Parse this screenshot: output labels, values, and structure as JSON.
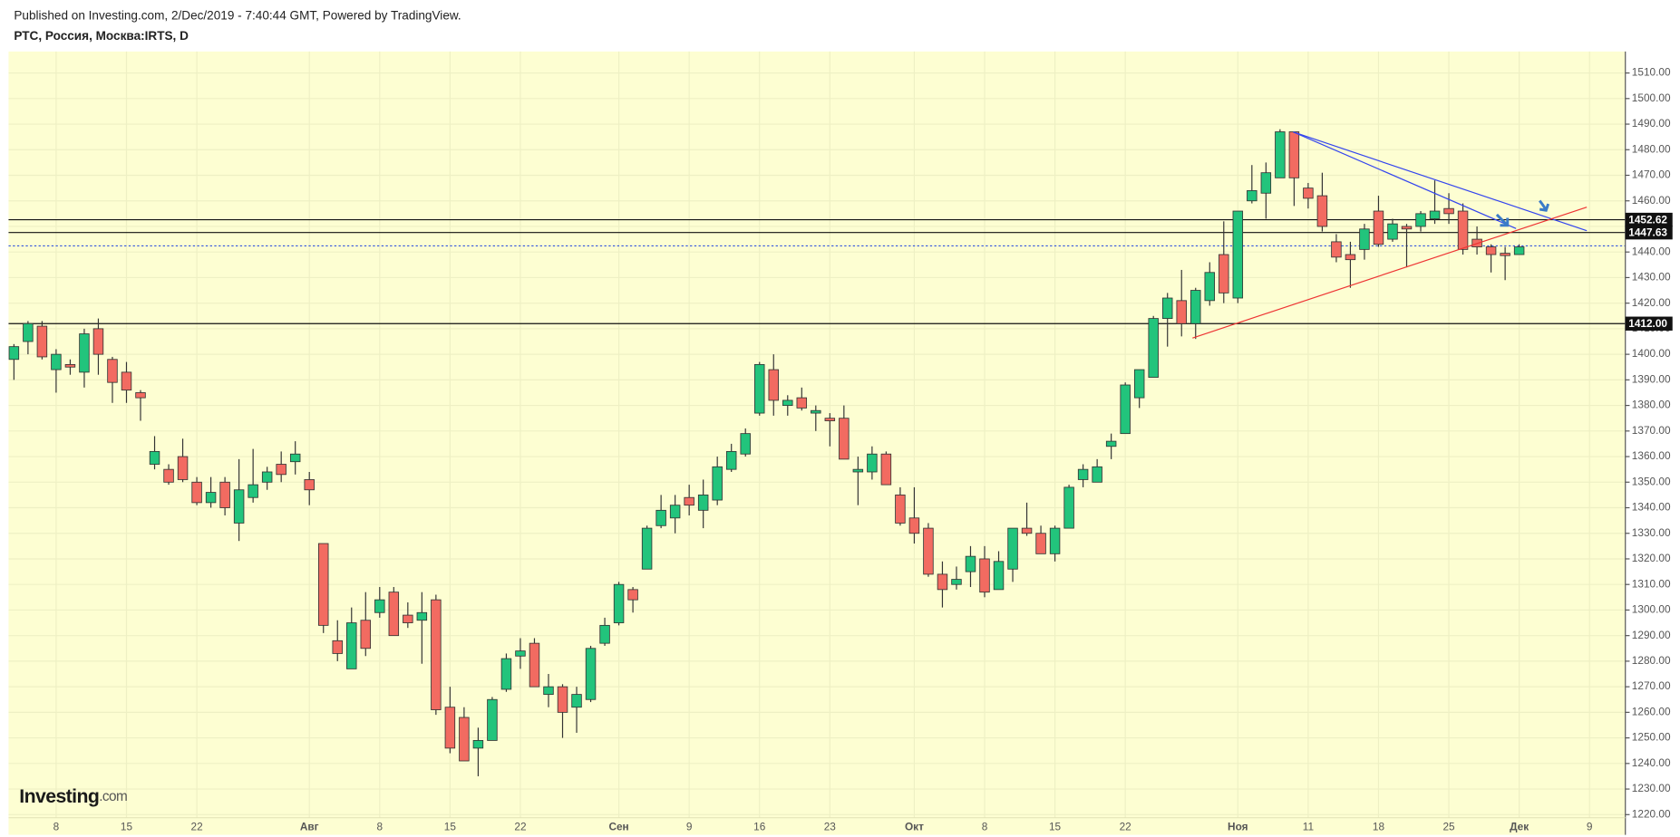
{
  "header": {
    "published": "Published on Investing.com, 2/Dec/2019 - 7:40:44 GMT, Powered by TradingView.",
    "symbol": "РТС, Россия, Москва:IRTS, D"
  },
  "logo": {
    "brand": "Investing",
    "suffix": ".com"
  },
  "chart_data": {
    "type": "candlestick",
    "categories": [
      null,
      null,
      null,
      "8",
      null,
      null,
      null,
      null,
      "15",
      null,
      null,
      null,
      null,
      "22",
      null,
      null,
      null,
      null,
      null,
      null,
      null,
      "Авг",
      null,
      null,
      null,
      null,
      "8",
      null,
      null,
      null,
      null,
      "15",
      null,
      null,
      null,
      null,
      "22",
      null,
      null,
      null,
      null,
      null,
      null,
      "Сен",
      null,
      null,
      null,
      null,
      "9",
      null,
      null,
      null,
      null,
      "16",
      null,
      null,
      null,
      null,
      "23",
      null,
      null,
      null,
      null,
      null,
      "Окт",
      null,
      null,
      null,
      null,
      "8",
      null,
      null,
      null,
      null,
      "15",
      null,
      null,
      null,
      null,
      "22",
      null,
      null,
      null,
      null,
      null,
      null,
      null,
      "Ноя",
      null,
      null,
      null,
      null,
      "11",
      null,
      null,
      null,
      null,
      "18",
      null,
      null,
      null,
      null,
      "25",
      null,
      null,
      null,
      null,
      "Дек",
      null,
      null,
      null,
      null,
      "9"
    ],
    "open": [
      1398,
      1405,
      1411,
      1394,
      1396,
      1393,
      1410,
      1398,
      1393,
      1385,
      1357,
      1355,
      1360,
      1350,
      1342,
      1350,
      1334,
      1344,
      1350,
      1357,
      1358,
      1351,
      1326,
      1288,
      1277,
      1296,
      1299,
      1307,
      1298,
      1296,
      1304,
      1262,
      1258,
      1246,
      1249,
      1269,
      1282,
      1287,
      1267,
      1270,
      1262,
      1265,
      1287,
      1295,
      1308,
      1316,
      1333,
      1336,
      1344,
      1339,
      1343,
      1355,
      1361,
      1377,
      1394,
      1380,
      1383,
      1377,
      1375,
      1375,
      1354,
      1354,
      1361,
      1345,
      1336,
      1332,
      1314,
      1310,
      1315,
      1320,
      1308,
      1316,
      1332,
      1330,
      1322,
      1332,
      1351,
      1350,
      1364,
      1369,
      1383,
      1391,
      1414,
      1421,
      1412,
      1421,
      1439,
      1422,
      1460,
      1463,
      1469,
      1487,
      1465,
      1462,
      1444,
      1439,
      1441,
      1456,
      1445,
      1450,
      1450,
      1453,
      1457,
      1456,
      1445,
      1442,
      1439.5,
      1439,
      null,
      null,
      null,
      null,
      null
    ],
    "high": [
      1404,
      1413,
      1413,
      1402,
      1398,
      1410,
      1414,
      1399,
      1397,
      1386,
      1368,
      1357,
      1367,
      1352,
      1352,
      1352,
      1359,
      1363,
      1356,
      1362,
      1366,
      1354,
      1326,
      1296,
      1301,
      1307,
      1309,
      1309,
      1303,
      1307,
      1306,
      1270,
      1262,
      1254,
      1266,
      1283,
      1289,
      1289,
      1275,
      1271,
      1270,
      1286,
      1297,
      1311,
      1309,
      1333,
      1345,
      1345,
      1349,
      1351,
      1360,
      1365,
      1371,
      1397,
      1400,
      1384,
      1387,
      1380,
      1377,
      1380,
      1360,
      1364,
      1362,
      1348,
      1348,
      1334,
      1319,
      1317,
      1325,
      1325,
      1323,
      1332,
      1342,
      1333,
      1333,
      1349,
      1357,
      1359,
      1369,
      1389,
      1394,
      1415,
      1424,
      1433,
      1426,
      1436,
      1452,
      1456,
      1474,
      1475,
      1488,
      1487,
      1467,
      1471,
      1447,
      1444,
      1451,
      1462,
      1453,
      1451,
      1456,
      1468,
      1463,
      1459,
      1450,
      1443,
      1442,
      1443,
      null,
      null,
      null,
      null,
      null
    ],
    "low": [
      1390,
      1400,
      1398,
      1385,
      1392,
      1387,
      1392,
      1381,
      1381,
      1374,
      1355,
      1349,
      1350,
      1341,
      1340,
      1337,
      1327,
      1342,
      1347,
      1350,
      1353,
      1341,
      1291,
      1280,
      1277,
      1282,
      1297,
      1290,
      1293,
      1279,
      1259,
      1244,
      1241,
      1235,
      1249,
      1268,
      1277,
      1270,
      1262,
      1250,
      1252,
      1264,
      1286,
      1294,
      1299,
      1316,
      1332,
      1330,
      1337,
      1332,
      1341,
      1354,
      1360,
      1376,
      1376,
      1376,
      1378,
      1370,
      1364,
      1359,
      1341,
      1351,
      1349,
      1333,
      1326,
      1313,
      1301,
      1308,
      1309,
      1305,
      1308,
      1311,
      1329,
      1322,
      1319,
      1332,
      1348,
      1350,
      1359,
      1369,
      1379,
      1391,
      1403,
      1407,
      1406,
      1419,
      1420,
      1420,
      1459,
      1453,
      1469,
      1458,
      1457,
      1448,
      1436,
      1426,
      1437,
      1442,
      1444,
      1434,
      1448,
      1451,
      1451,
      1439,
      1439,
      1432,
      1429,
      1439,
      null,
      null,
      null,
      null,
      null
    ],
    "close": [
      1403,
      1412,
      1399,
      1400,
      1395,
      1408,
      1400,
      1389,
      1386,
      1383,
      1362,
      1350,
      1351,
      1342,
      1346,
      1340,
      1347,
      1349,
      1354,
      1353,
      1361,
      1347,
      1294,
      1283,
      1295,
      1285,
      1304,
      1290,
      1295,
      1299,
      1261,
      1246,
      1241,
      1249,
      1265,
      1281,
      1284,
      1270,
      1270,
      1260,
      1267,
      1285,
      1294,
      1310,
      1304,
      1332,
      1339,
      1341,
      1341,
      1345,
      1356,
      1362,
      1369,
      1396,
      1382,
      1382,
      1379,
      1378,
      1374,
      1359,
      1355,
      1361,
      1349,
      1334,
      1330,
      1314,
      1308,
      1312,
      1321,
      1307,
      1319,
      1332,
      1330,
      1322,
      1332,
      1348,
      1355,
      1356,
      1366,
      1388,
      1394,
      1414,
      1422,
      1412,
      1425,
      1432,
      1424,
      1456,
      1464,
      1471,
      1487,
      1469,
      1461,
      1450,
      1438,
      1437,
      1449,
      1443,
      1451,
      1449,
      1455,
      1456,
      1455,
      1441,
      1442,
      1439,
      1438.6,
      1442,
      null,
      null,
      null,
      null,
      null
    ],
    "up_color": "#22c47c",
    "down_color": "#f26b61",
    "ylim": [
      1218.8,
      1518.4
    ],
    "yticks": [
      {
        "value": 1220,
        "label": "1220.00"
      },
      {
        "value": 1230,
        "label": "1230.00"
      },
      {
        "value": 1240,
        "label": "1240.00"
      },
      {
        "value": 1250,
        "label": "1250.00"
      },
      {
        "value": 1260,
        "label": "1260.00"
      },
      {
        "value": 1270,
        "label": "1270.00"
      },
      {
        "value": 1280,
        "label": "1280.00"
      },
      {
        "value": 1290,
        "label": "1290.00"
      },
      {
        "value": 1300,
        "label": "1300.00"
      },
      {
        "value": 1310,
        "label": "1310.00"
      },
      {
        "value": 1320,
        "label": "1320.00"
      },
      {
        "value": 1330,
        "label": "1330.00"
      },
      {
        "value": 1340,
        "label": "1340.00"
      },
      {
        "value": 1350,
        "label": "1350.00"
      },
      {
        "value": 1360,
        "label": "1360.00"
      },
      {
        "value": 1370,
        "label": "1370.00"
      },
      {
        "value": 1380,
        "label": "1380.00"
      },
      {
        "value": 1390,
        "label": "1390.00"
      },
      {
        "value": 1400,
        "label": "1400.00"
      },
      {
        "value": 1410,
        "label": "1410.00"
      },
      {
        "value": 1420,
        "label": "1420.00"
      },
      {
        "value": 1430,
        "label": "1430.00"
      },
      {
        "value": 1440,
        "label": "1440.00"
      },
      {
        "value": 1450,
        "label": "1450.00"
      },
      {
        "value": 1460,
        "label": "1460.00"
      },
      {
        "value": 1470,
        "label": "1470.00"
      },
      {
        "value": 1480,
        "label": "1480.00"
      },
      {
        "value": 1490,
        "label": "1490.00"
      },
      {
        "value": 1500,
        "label": "1500.00"
      },
      {
        "value": 1510,
        "label": "1510.00"
      }
    ],
    "levels": [
      1452.62,
      1447.63,
      {
        "value": 1412,
        "label": "1412.00"
      }
    ],
    "current_price": 1442.4,
    "grid": true
  }
}
